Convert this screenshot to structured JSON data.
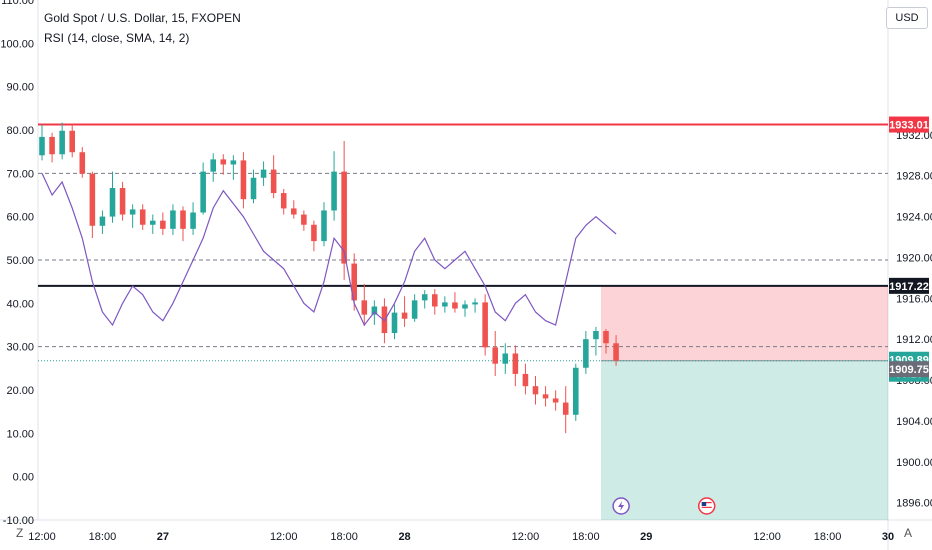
{
  "header": {
    "symbol_line": "Gold Spot / U.S. Dollar, 15, FXOPEN",
    "indicator_line": "RSI (14, close, SMA, 14, 2)",
    "currency_button": "USD"
  },
  "footer": {
    "left_button": "Z",
    "right_button": "A"
  },
  "colors": {
    "up": "#26a69a",
    "down": "#ef5350",
    "rsi_line": "#7e57c2",
    "resistance_line": "#f23645",
    "support_line": "#131722",
    "stop_zone": "rgba(242,54,69,0.22)",
    "target_zone": "rgba(8,153,129,0.20)",
    "current_price_dotted": "#26a69a"
  },
  "chart_data": [
    {
      "type": "candlestick",
      "title": "Gold Spot / U.S. Dollar, 15, FXOPEN",
      "price_axis": {
        "range": [
          1894.3,
          1945.2
        ],
        "ticks": [
          "1896.00",
          "1900.00",
          "1904.00",
          "1908.00",
          "1912.00",
          "1916.00",
          "1920.00",
          "1924.00",
          "1928.00",
          "1932.00"
        ]
      },
      "time_axis": {
        "range": [
          0,
          84
        ],
        "ticks": [
          {
            "x": 0,
            "label": "12:00"
          },
          {
            "x": 6,
            "label": "18:00"
          },
          {
            "x": 12,
            "label": "27"
          },
          {
            "x": 24,
            "label": "12:00"
          },
          {
            "x": 30,
            "label": "18:00"
          },
          {
            "x": 36,
            "label": "28"
          },
          {
            "x": 48,
            "label": "12:00"
          },
          {
            "x": 54,
            "label": "18:00"
          },
          {
            "x": 60,
            "label": "29"
          },
          {
            "x": 72,
            "label": "12:00"
          },
          {
            "x": 78,
            "label": "18:00"
          },
          {
            "x": 84,
            "label": "30"
          }
        ]
      },
      "candles_hourly_ohlc": [
        [
          0,
          1930.0,
          1933.0,
          1929.5,
          1931.8
        ],
        [
          1,
          1931.8,
          1932.2,
          1929.3,
          1930.1
        ],
        [
          2,
          1930.1,
          1933.2,
          1929.6,
          1932.4
        ],
        [
          3,
          1932.4,
          1933.0,
          1929.8,
          1930.3
        ],
        [
          4,
          1930.3,
          1930.8,
          1927.8,
          1928.2
        ],
        [
          5,
          1928.2,
          1928.4,
          1921.9,
          1923.1
        ],
        [
          6,
          1923.1,
          1924.6,
          1922.3,
          1924.0
        ],
        [
          7,
          1924.0,
          1928.4,
          1923.4,
          1926.8
        ],
        [
          8,
          1926.8,
          1927.4,
          1923.6,
          1924.2
        ],
        [
          9,
          1924.2,
          1925.2,
          1922.9,
          1924.7
        ],
        [
          10,
          1924.7,
          1925.2,
          1922.7,
          1923.2
        ],
        [
          11,
          1923.2,
          1924.2,
          1922.3,
          1923.6
        ],
        [
          12,
          1923.6,
          1924.4,
          1922.2,
          1922.8
        ],
        [
          13,
          1922.8,
          1925.2,
          1922.2,
          1924.6
        ],
        [
          14,
          1924.6,
          1925.0,
          1921.6,
          1922.8
        ],
        [
          15,
          1922.8,
          1925.4,
          1922.2,
          1924.4
        ],
        [
          16,
          1924.4,
          1929.3,
          1924.2,
          1928.4
        ],
        [
          17,
          1928.4,
          1930.2,
          1927.4,
          1929.6
        ],
        [
          18,
          1929.6,
          1930.1,
          1928.1,
          1929.1
        ],
        [
          19,
          1929.1,
          1930.0,
          1927.6,
          1929.5
        ],
        [
          20,
          1929.5,
          1930.3,
          1924.8,
          1925.7
        ],
        [
          21,
          1925.7,
          1928.6,
          1925.3,
          1927.8
        ],
        [
          22,
          1927.8,
          1929.4,
          1927.0,
          1928.6
        ],
        [
          23,
          1928.6,
          1930.0,
          1925.8,
          1926.3
        ],
        [
          24,
          1926.3,
          1926.7,
          1924.2,
          1924.8
        ],
        [
          25,
          1924.8,
          1925.6,
          1923.8,
          1924.2
        ],
        [
          26,
          1924.2,
          1924.6,
          1922.6,
          1923.2
        ],
        [
          27,
          1923.2,
          1923.6,
          1920.6,
          1921.6
        ],
        [
          28,
          1921.6,
          1925.4,
          1921.1,
          1924.6
        ],
        [
          29,
          1924.6,
          1930.4,
          1923.6,
          1928.4
        ],
        [
          30,
          1928.4,
          1931.4,
          1917.8,
          1919.4
        ],
        [
          31,
          1919.4,
          1920.4,
          1914.8,
          1915.8
        ],
        [
          32,
          1915.8,
          1917.4,
          1913.3,
          1914.4
        ],
        [
          33,
          1914.4,
          1915.8,
          1913.4,
          1915.2
        ],
        [
          34,
          1915.2,
          1916.0,
          1911.6,
          1912.6
        ],
        [
          35,
          1912.6,
          1915.4,
          1912.0,
          1914.6
        ],
        [
          36,
          1914.6,
          1916.2,
          1913.2,
          1914.0
        ],
        [
          37,
          1914.0,
          1916.4,
          1913.7,
          1915.8
        ],
        [
          38,
          1915.8,
          1916.8,
          1915.0,
          1916.4
        ],
        [
          39,
          1916.4,
          1916.9,
          1914.4,
          1915.2
        ],
        [
          40,
          1915.2,
          1916.2,
          1914.6,
          1915.6
        ],
        [
          41,
          1915.6,
          1916.6,
          1914.6,
          1915.0
        ],
        [
          42,
          1915.0,
          1915.8,
          1914.2,
          1915.4
        ],
        [
          43,
          1915.4,
          1916.0,
          1914.6,
          1915.6
        ],
        [
          44,
          1915.6,
          1916.4,
          1910.4,
          1911.2
        ],
        [
          45,
          1911.2,
          1912.8,
          1908.4,
          1909.6
        ],
        [
          46,
          1909.6,
          1911.6,
          1908.6,
          1910.6
        ],
        [
          47,
          1910.6,
          1911.4,
          1907.4,
          1908.6
        ],
        [
          48,
          1908.6,
          1909.6,
          1906.6,
          1907.4
        ],
        [
          49,
          1907.4,
          1908.4,
          1905.6,
          1906.6
        ],
        [
          50,
          1906.6,
          1907.4,
          1905.4,
          1906.2
        ],
        [
          51,
          1906.2,
          1907.0,
          1905.0,
          1905.8
        ],
        [
          52,
          1905.8,
          1907.4,
          1902.8,
          1904.6
        ],
        [
          53,
          1904.6,
          1909.6,
          1904.0,
          1909.2
        ],
        [
          54,
          1909.2,
          1912.8,
          1908.6,
          1912.0
        ],
        [
          55,
          1912.0,
          1913.2,
          1910.4,
          1912.8
        ],
        [
          56,
          1912.8,
          1913.0,
          1910.6,
          1911.6
        ],
        [
          57,
          1911.6,
          1912.4,
          1909.4,
          1909.9
        ]
      ],
      "horizontal_lines": [
        {
          "price": 1933.01,
          "label": "1933.01",
          "style": "solid",
          "color": "#f23645"
        },
        {
          "price": 1917.22,
          "label": "1917.22",
          "style": "solid",
          "color": "#131722"
        }
      ],
      "position_tool": {
        "start_x": 55.5,
        "end_x": 84,
        "entry": 1909.89,
        "stop": 1917.22,
        "target": 1894.3
      },
      "price_labels": [
        {
          "price": 1909.89,
          "value": "1909.89",
          "countdown": "06:16",
          "kind": "current"
        },
        {
          "price": 1909.75,
          "value": "1909.75",
          "kind": "rsi-ma"
        }
      ],
      "event_markers": [
        {
          "x": 57.5,
          "icon": "lightning-icon"
        },
        {
          "x": 66.0,
          "icon": "us-flag-icon"
        }
      ]
    },
    {
      "type": "line",
      "title": "RSI (14, close, SMA, 14, 2)",
      "rsi_axis": {
        "range": [
          -10,
          110
        ],
        "ticks": [
          "-10.00",
          "0.00",
          "10.00",
          "20.00",
          "30.00",
          "40.00",
          "50.00",
          "60.00",
          "70.00",
          "80.00",
          "90.00",
          "100.00",
          "110.00"
        ]
      },
      "bands": [
        70,
        50,
        30
      ],
      "series": [
        {
          "values": [
            70,
            65,
            68,
            62,
            55,
            45,
            38,
            35,
            40,
            44,
            42,
            38,
            36,
            40,
            45,
            50,
            55,
            62,
            66,
            63,
            60,
            56,
            52,
            50,
            48,
            44,
            40,
            38,
            45,
            55,
            52,
            40,
            35,
            38,
            36,
            40,
            45,
            52,
            55,
            50,
            48,
            50,
            52,
            48,
            44,
            38,
            36,
            40,
            42,
            38,
            36,
            35,
            45,
            55,
            58,
            60,
            58,
            56
          ]
        }
      ]
    }
  ]
}
